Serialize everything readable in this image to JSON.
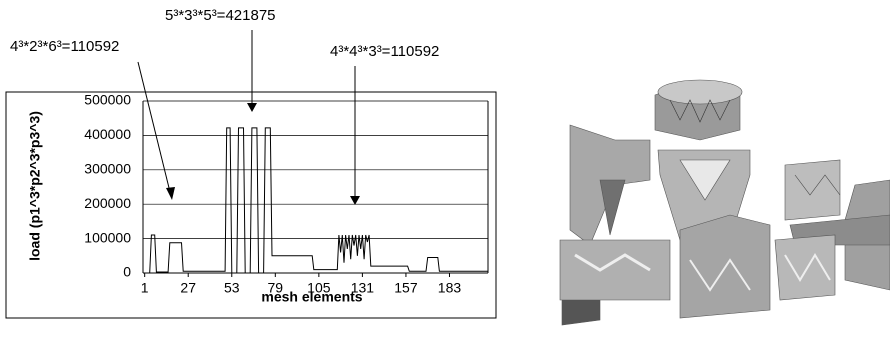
{
  "chart_data": {
    "type": "line",
    "annotations": [
      "4³*2³*6³=110592",
      "5³*3³*5³=421875",
      "4³*4³*3³=110592"
    ],
    "ylabel": "load (p1^3*p2^3*p3^3)",
    "xlabel": "mesh elements",
    "color": "#000000",
    "grid": true,
    "xlim": [
      0,
      206
    ],
    "xticks": [
      1,
      27,
      53,
      79,
      105,
      131,
      157,
      183
    ],
    "ylim": [
      0,
      500000
    ],
    "yticks": [
      0,
      100000,
      200000,
      300000,
      400000,
      500000
    ],
    "x": [
      1,
      4,
      5,
      7,
      8,
      15,
      16,
      23,
      24,
      49,
      50,
      52,
      53,
      56,
      57,
      60,
      61,
      64,
      65,
      68,
      69,
      72,
      73,
      76,
      77,
      101,
      102,
      116,
      117,
      118,
      119,
      120,
      121,
      122,
      123,
      124,
      125,
      126,
      127,
      128,
      129,
      130,
      131,
      132,
      133,
      134,
      135,
      136,
      158,
      159,
      169,
      170,
      176,
      177,
      206
    ],
    "values": [
      0,
      0,
      110592,
      110592,
      3000,
      3000,
      88000,
      88000,
      5000,
      5000,
      421875,
      421875,
      0,
      0,
      421875,
      421875,
      0,
      0,
      421875,
      421875,
      0,
      0,
      421875,
      421875,
      50000,
      50000,
      10000,
      10000,
      110592,
      60000,
      110592,
      30000,
      110592,
      70000,
      110592,
      40000,
      110592,
      80000,
      110592,
      50000,
      110592,
      70000,
      110592,
      40000,
      110592,
      90000,
      110592,
      20000,
      20000,
      5000,
      5000,
      45000,
      45000,
      5000,
      5000
    ]
  }
}
